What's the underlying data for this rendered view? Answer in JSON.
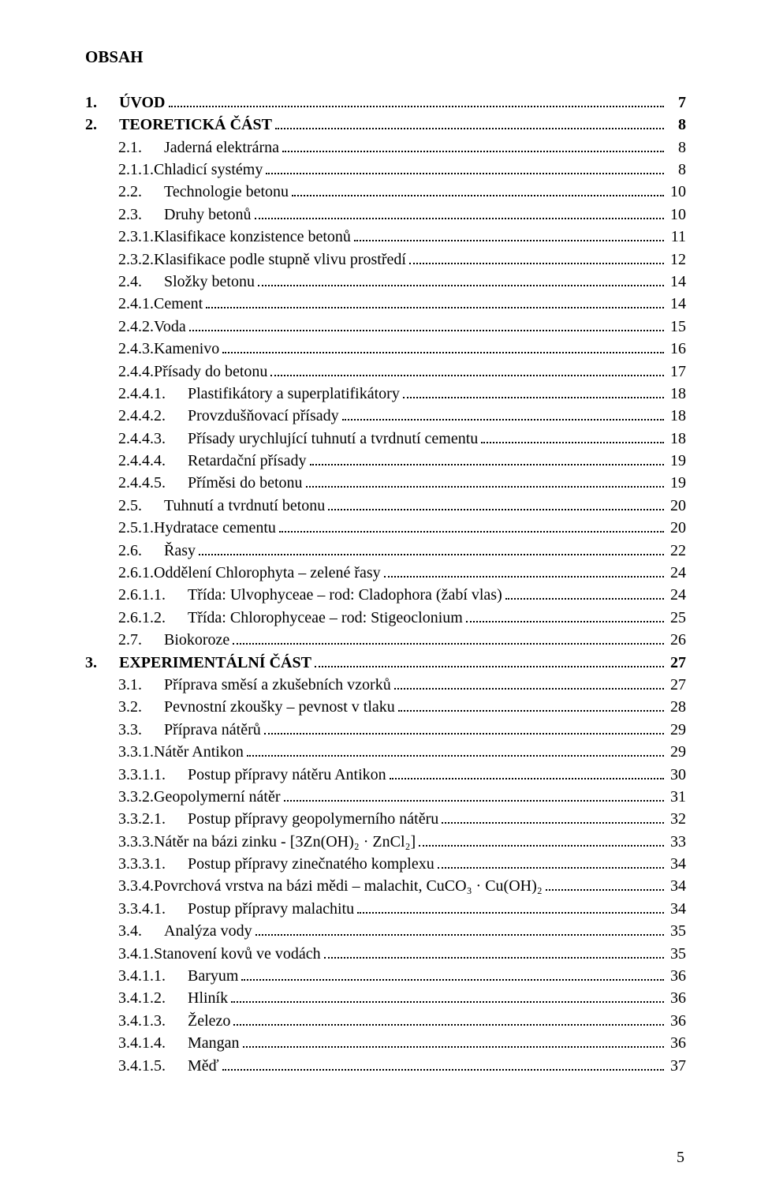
{
  "title": "OBSAH",
  "footer_page": "5",
  "entries": [
    {
      "num": "1.",
      "sep": true,
      "text": "ÚVOD",
      "page": "7",
      "level": 1,
      "bold": true
    },
    {
      "num": "2.",
      "sep": true,
      "text": "TEORETICKÁ ČÁST",
      "page": "8",
      "level": 1,
      "bold": true
    },
    {
      "num": "2.1.",
      "sep": true,
      "text": "Jaderná elektrárna",
      "page": "8",
      "level": 2,
      "bold": false
    },
    {
      "num": "2.1.1. ",
      "sep": false,
      "text": "Chladicí systémy",
      "page": "8",
      "level": 3,
      "bold": false
    },
    {
      "num": "2.2.",
      "sep": true,
      "text": "Technologie betonu",
      "page": "10",
      "level": 2,
      "bold": false
    },
    {
      "num": "2.3.",
      "sep": true,
      "text": "Druhy betonů",
      "page": "10",
      "level": 2,
      "bold": false
    },
    {
      "num": "2.3.1. ",
      "sep": false,
      "text": "Klasifikace konzistence betonů",
      "page": "11",
      "level": 3,
      "bold": false
    },
    {
      "num": "2.3.2. ",
      "sep": false,
      "text": "Klasifikace podle stupně vlivu prostředí",
      "page": "12",
      "level": 3,
      "bold": false
    },
    {
      "num": "2.4.",
      "sep": true,
      "text": "Složky betonu",
      "page": "14",
      "level": 2,
      "bold": false
    },
    {
      "num": "2.4.1. ",
      "sep": false,
      "text": "Cement",
      "page": "14",
      "level": 3,
      "bold": false
    },
    {
      "num": "2.4.2. ",
      "sep": false,
      "text": "Voda",
      "page": "15",
      "level": 3,
      "bold": false
    },
    {
      "num": "2.4.3. ",
      "sep": false,
      "text": "Kamenivo",
      "page": "16",
      "level": 3,
      "bold": false
    },
    {
      "num": "2.4.4. ",
      "sep": false,
      "text": "Přísady do betonu",
      "page": "17",
      "level": 3,
      "bold": false
    },
    {
      "num": "2.4.4.1.",
      "sep": true,
      "text": "Plastifikátory a superplatifikátory",
      "page": "18",
      "level": 4,
      "bold": false
    },
    {
      "num": "2.4.4.2.",
      "sep": true,
      "text": "Provzdušňovací přísady",
      "page": "18",
      "level": 4,
      "bold": false
    },
    {
      "num": "2.4.4.3.",
      "sep": true,
      "text": "Přísady urychlující tuhnutí a tvrdnutí cementu",
      "page": "18",
      "level": 4,
      "bold": false
    },
    {
      "num": "2.4.4.4.",
      "sep": true,
      "text": "Retardační přísady",
      "page": "19",
      "level": 4,
      "bold": false
    },
    {
      "num": "2.4.4.5.",
      "sep": true,
      "text": "Příměsi do betonu",
      "page": "19",
      "level": 4,
      "bold": false
    },
    {
      "num": "2.5.",
      "sep": true,
      "text": "Tuhnutí a tvrdnutí betonu",
      "page": "20",
      "level": 2,
      "bold": false
    },
    {
      "num": "2.5.1. ",
      "sep": false,
      "text": "Hydratace cementu",
      "page": "20",
      "level": 3,
      "bold": false
    },
    {
      "num": "2.6.",
      "sep": true,
      "text": "Řasy",
      "page": "22",
      "level": 2,
      "bold": false
    },
    {
      "num": "2.6.1. ",
      "sep": false,
      "text": "Oddělení Chlorophyta – zelené řasy",
      "page": "24",
      "level": 3,
      "bold": false
    },
    {
      "num": "2.6.1.1.",
      "sep": true,
      "text": "Třída: Ulvophyceae – rod: Cladophora (žabí vlas)",
      "page": "24",
      "level": 4,
      "bold": false
    },
    {
      "num": "2.6.1.2.",
      "sep": true,
      "text": "Třída: Chlorophyceae – rod: Stigeoclonium",
      "page": "25",
      "level": 4,
      "bold": false
    },
    {
      "num": "2.7.",
      "sep": true,
      "text": "Biokoroze",
      "page": "26",
      "level": 2,
      "bold": false
    },
    {
      "num": "3.",
      "sep": true,
      "text": "EXPERIMENTÁLNÍ ČÁST",
      "page": "27",
      "level": 1,
      "bold": true
    },
    {
      "num": "3.1.",
      "sep": true,
      "text": "Příprava směsí a zkušebních vzorků",
      "page": "27",
      "level": 2,
      "bold": false
    },
    {
      "num": "3.2.",
      "sep": true,
      "text": "Pevnostní zkoušky – pevnost v tlaku",
      "page": "28",
      "level": 2,
      "bold": false
    },
    {
      "num": "3.3.",
      "sep": true,
      "text": "Příprava nátěrů",
      "page": "29",
      "level": 2,
      "bold": false
    },
    {
      "num": "3.3.1. ",
      "sep": false,
      "text": "Nátěr Antikon",
      "page": "29",
      "level": 3,
      "bold": false
    },
    {
      "num": "3.3.1.1.",
      "sep": true,
      "text": "Postup přípravy nátěru Antikon",
      "page": "30",
      "level": 4,
      "bold": false
    },
    {
      "num": "3.3.2. ",
      "sep": false,
      "text": "Geopolymerní nátěr",
      "page": "31",
      "level": 3,
      "bold": false
    },
    {
      "num": "3.3.2.1.",
      "sep": true,
      "text": "Postup přípravy geopolymerního nátěru",
      "page": "32",
      "level": 4,
      "bold": false
    },
    {
      "num": "3.3.3. ",
      "sep": false,
      "text": "Nátěr na bázi zinku - [3Zn(OH)₂ · ZnCl₂]",
      "page": "33",
      "level": 3,
      "bold": false
    },
    {
      "num": "3.3.3.1.",
      "sep": true,
      "text": "Postup přípravy zinečnatého komplexu",
      "page": "34",
      "level": 4,
      "bold": false
    },
    {
      "num": "3.3.4. ",
      "sep": false,
      "text": "Povrchová vrstva na bázi mědi – malachit, CuCO₃ · Cu(OH)₂",
      "page": "34",
      "level": 3,
      "bold": false
    },
    {
      "num": "3.3.4.1.",
      "sep": true,
      "text": "Postup přípravy malachitu",
      "page": "34",
      "level": 4,
      "bold": false
    },
    {
      "num": "3.4.",
      "sep": true,
      "text": "Analýza vody",
      "page": "35",
      "level": 2,
      "bold": false
    },
    {
      "num": "3.4.1. ",
      "sep": false,
      "text": "Stanovení kovů ve vodách",
      "page": "35",
      "level": 3,
      "bold": false
    },
    {
      "num": "3.4.1.1.",
      "sep": true,
      "text": "Baryum",
      "page": "36",
      "level": 4,
      "bold": false
    },
    {
      "num": "3.4.1.2.",
      "sep": true,
      "text": "Hliník",
      "page": "36",
      "level": 4,
      "bold": false
    },
    {
      "num": "3.4.1.3.",
      "sep": true,
      "text": "Železo",
      "page": "36",
      "level": 4,
      "bold": false
    },
    {
      "num": "3.4.1.4.",
      "sep": true,
      "text": "Mangan",
      "page": "36",
      "level": 4,
      "bold": false
    },
    {
      "num": "3.4.1.5.",
      "sep": true,
      "text": "Měď",
      "page": "37",
      "level": 4,
      "bold": false
    }
  ]
}
